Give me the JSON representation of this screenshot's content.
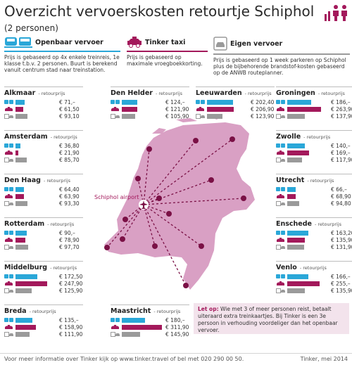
{
  "header": {
    "title": "Overzicht vervoerskosten retourtje Schiphol",
    "subtitle": "(2 personen)"
  },
  "colors": {
    "ov": "#2aa7d8",
    "taxi": "#a3195b",
    "auto": "#9a9a9a",
    "map": "#d9a0c4",
    "marker": "#7a1045"
  },
  "icons": {
    "people": "two-people-icon",
    "ov": "train-bus-icon",
    "taxi": "taxi-icon",
    "auto": "car-parking-icon"
  },
  "modes": {
    "ov": {
      "name": "Openbaar vervoer",
      "desc": "Prijs is gebaseerd op 4x enkele treinreis, 1e\nklasse t.b.v. 2 personen. Buurt is berekend\nvanuit centrum stad naar treinstation."
    },
    "taxi": {
      "name": "Tinker taxi",
      "desc": "Prijs is gebaseerd op\nmaximale vroegboekkorting."
    },
    "auto": {
      "name": "Eigen vervoer",
      "desc": "Prijs is gebaseerd op 1 week parkeren op Schiphol\nplus de bijbehorende brandstof-kosten gebaseerd\nop de ANWB routeplanner."
    }
  },
  "retour_label": "- retourprijs",
  "cities": [
    {
      "name": "Alkmaar",
      "ov": 71,
      "taxi": 61.5,
      "auto": 93.1,
      "ov_label": "€ 71,–",
      "taxi_label": "€ 61,50",
      "auto_label": "€ 93,10"
    },
    {
      "name": "Den Helder",
      "ov": 124,
      "taxi": 121.9,
      "auto": 105.9,
      "ov_label": "€ 124,–",
      "taxi_label": "€ 121,90",
      "auto_label": "€ 105,90"
    },
    {
      "name": "Leeuwarden",
      "ov": 202.4,
      "taxi": 206.9,
      "auto": 123.9,
      "ov_label": "€ 202,40",
      "taxi_label": "€ 206,90",
      "auto_label": "€ 123,90"
    },
    {
      "name": "Groningen",
      "ov": 186,
      "taxi": 263.9,
      "auto": 137.9,
      "ov_label": "€ 186,–",
      "taxi_label": "€ 263,90",
      "auto_label": "€ 137,90"
    },
    {
      "name": "Amsterdam",
      "ov": 36.8,
      "taxi": 21.9,
      "auto": 85.7,
      "ov_label": "€ 36,80",
      "taxi_label": "€ 21,90",
      "auto_label": "€ 85,70"
    },
    {
      "name": "Zwolle",
      "ov": 140,
      "taxi": 169,
      "auto": 117.9,
      "ov_label": "€ 140,–",
      "taxi_label": "€ 169,–",
      "auto_label": "€ 117,90"
    },
    {
      "name": "Den Haag",
      "ov": 64.4,
      "taxi": 63.9,
      "auto": 93.3,
      "ov_label": "€ 64,40",
      "taxi_label": "€ 63,90",
      "auto_label": "€ 93,30"
    },
    {
      "name": "Utrecht",
      "ov": 66,
      "taxi": 68.9,
      "auto": 94.8,
      "ov_label": "€ 66,–",
      "taxi_label": "€ 68,90",
      "auto_label": "€ 94,80"
    },
    {
      "name": "Rotterdam",
      "ov": 90,
      "taxi": 78.9,
      "auto": 97.7,
      "ov_label": "€ 90,–",
      "taxi_label": "€ 78,90",
      "auto_label": "€ 97,70"
    },
    {
      "name": "Enschede",
      "ov": 163.2,
      "taxi": 135.9,
      "auto": 131.9,
      "ov_label": "€ 163,20",
      "taxi_label": "€ 135,90",
      "auto_label": "€ 131,90"
    },
    {
      "name": "Middelburg",
      "ov": 172.5,
      "taxi": 247.9,
      "auto": 125.9,
      "ov_label": "€ 172,50",
      "taxi_label": "€ 247,90",
      "auto_label": "€ 125,90"
    },
    {
      "name": "Venlo",
      "ov": 166,
      "taxi": 255,
      "auto": 135.9,
      "ov_label": "€ 166,–",
      "taxi_label": "€ 255,–",
      "auto_label": "€ 135,90"
    },
    {
      "name": "Breda",
      "ov": 135,
      "taxi": 158.9,
      "auto": 111.9,
      "ov_label": "€ 135,–",
      "taxi_label": "€ 158,90",
      "auto_label": "€ 111,90"
    },
    {
      "name": "Maastricht",
      "ov": 180,
      "taxi": 311.9,
      "auto": 145.9,
      "ov_label": "€ 180,–",
      "taxi_label": "€ 311,90",
      "auto_label": "€ 145,90"
    }
  ],
  "map": {
    "airport_label": "Schiphol airport"
  },
  "note": {
    "lead": "Let op:",
    "text": " Wie met 3 of meer personen reist, betaalt uiteraard extra treinkaartjes. Bij Tinker is een 3e persoon in verhouding voordeliger dan het openbaar vervoer."
  },
  "footer": {
    "info": "Voor meer informatie over Tinker kijk op www.tinker.travel of bel met 020 290 00 50.",
    "credit": "Tinker, mei 2014"
  }
}
